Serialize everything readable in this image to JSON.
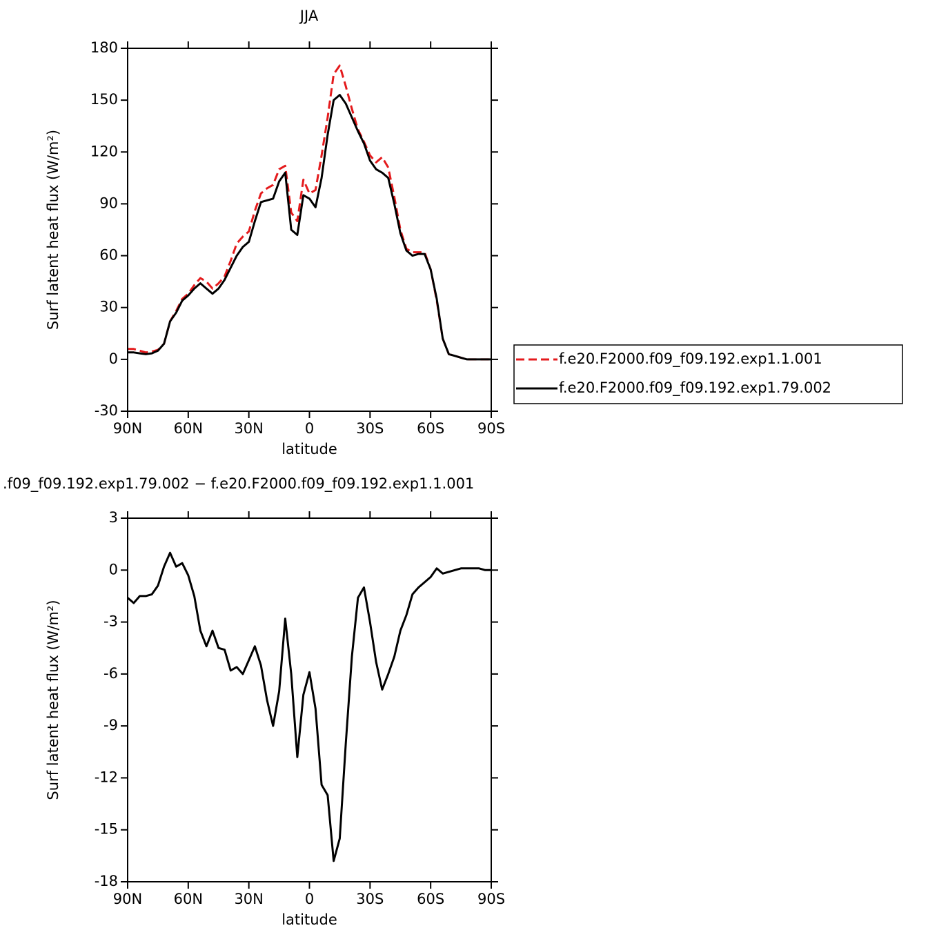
{
  "chart_data": [
    {
      "type": "line",
      "title": "JJA",
      "x_label": "latitude",
      "y_label": "Surf latent heat flux (W/m²)",
      "x": [
        90,
        87,
        84,
        81,
        78,
        75,
        72,
        69,
        66,
        63,
        60,
        57,
        54,
        51,
        48,
        45,
        42,
        39,
        36,
        33,
        30,
        27,
        24,
        21,
        18,
        15,
        12,
        9,
        6,
        3,
        0,
        -3,
        -6,
        -9,
        -12,
        -15,
        -18,
        -21,
        -24,
        -27,
        -30,
        -33,
        -36,
        -39,
        -42,
        -45,
        -48,
        -51,
        -54,
        -57,
        -60,
        -63,
        -66,
        -69,
        -72,
        -75,
        -78,
        -81,
        -84,
        -87,
        -90
      ],
      "series": [
        {
          "name": "f.e20.F2000.f09_f09.192.exp1.1.001",
          "color": "#e41a1c",
          "line_style": "dashed",
          "values": [
            6,
            6,
            5,
            4,
            4.5,
            5.5,
            9,
            22,
            28,
            35,
            38,
            43,
            47,
            45,
            41,
            44,
            48,
            57,
            67,
            71,
            74,
            86,
            96,
            99,
            101,
            110,
            112,
            85,
            80,
            104,
            96,
            98,
            118,
            140,
            165,
            170,
            158,
            145,
            133,
            126,
            118,
            114,
            117,
            111,
            94,
            75,
            64,
            62,
            62,
            62,
            52,
            34,
            12,
            3,
            2,
            1,
            0,
            0,
            0,
            0,
            0
          ]
        },
        {
          "name": "f.e20.F2000.f09_f09.192.exp1.79.002",
          "color": "#000000",
          "line_style": "solid",
          "values": [
            4,
            4,
            3.5,
            3,
            3.5,
            5,
            9,
            22,
            27,
            34,
            37,
            41,
            44,
            41,
            38,
            41,
            46,
            53,
            60,
            65,
            68,
            80,
            91,
            92,
            93,
            103,
            108,
            75,
            72,
            95,
            93,
            88,
            105,
            130,
            150,
            153,
            148,
            140,
            132,
            125,
            115,
            110,
            108,
            105,
            90,
            73,
            63,
            60,
            61,
            61,
            52,
            35,
            12,
            3,
            2,
            1,
            0,
            0,
            0,
            0,
            0
          ]
        }
      ],
      "xlim": [
        90,
        -90
      ],
      "xticks": [
        {
          "value": 90,
          "label": "90N"
        },
        {
          "value": 60,
          "label": "60N"
        },
        {
          "value": 30,
          "label": "30N"
        },
        0,
        {
          "value": -30,
          "label": "30S"
        },
        {
          "value": -60,
          "label": "60S"
        },
        {
          "value": -90,
          "label": "90S"
        }
      ],
      "ylim": [
        -30,
        180
      ],
      "yticks": [
        -30,
        0,
        30,
        60,
        90,
        120,
        150,
        180
      ],
      "legend": "right"
    },
    {
      "type": "line",
      "title": ".f09_f09.192.exp1.79.002 − f.e20.F2000.f09_f09.192.exp1.1.001",
      "x_label": "latitude",
      "y_label": "Surf latent heat flux (W/m²)",
      "x": [
        90,
        87,
        84,
        81,
        78,
        75,
        72,
        69,
        66,
        63,
        60,
        57,
        54,
        51,
        48,
        45,
        42,
        39,
        36,
        33,
        30,
        27,
        24,
        21,
        18,
        15,
        12,
        9,
        6,
        3,
        0,
        -3,
        -6,
        -9,
        -12,
        -15,
        -18,
        -21,
        -24,
        -27,
        -30,
        -33,
        -36,
        -39,
        -42,
        -45,
        -48,
        -51,
        -54,
        -57,
        -60,
        -63,
        -66,
        -69,
        -72,
        -75,
        -78,
        -81,
        -84,
        -87,
        -90
      ],
      "values": [
        -1.6,
        -1.9,
        -1.5,
        -1.5,
        -1.4,
        -0.9,
        0.2,
        1.0,
        0.2,
        0.4,
        -0.3,
        -1.5,
        -3.5,
        -4.4,
        -3.5,
        -4.5,
        -4.6,
        -5.8,
        -5.6,
        -6.0,
        -5.2,
        -4.4,
        -5.5,
        -7.5,
        -9.0,
        -7.0,
        -2.8,
        -6.0,
        -10.8,
        -7.2,
        -5.9,
        -8.0,
        -12.4,
        -13.0,
        -16.8,
        -15.5,
        -10.0,
        -5.0,
        -1.6,
        -1.0,
        -3.0,
        -5.3,
        -6.9,
        -6.0,
        -5.0,
        -3.5,
        -2.6,
        -1.4,
        -1.0,
        -0.7,
        -0.4,
        0.1,
        -0.2,
        -0.1,
        0.0,
        0.1,
        0.1,
        0.1,
        0.1,
        0.0,
        0.0
      ],
      "color": "#000000",
      "line_style": "solid",
      "xlim": [
        90,
        -90
      ],
      "xticks": [
        {
          "value": 90,
          "label": "90N"
        },
        {
          "value": 60,
          "label": "60N"
        },
        {
          "value": 30,
          "label": "30N"
        },
        0,
        {
          "value": -30,
          "label": "30S"
        },
        {
          "value": -60,
          "label": "60S"
        },
        {
          "value": -90,
          "label": "90S"
        }
      ],
      "ylim": [
        -18,
        3
      ],
      "yticks": [
        -18,
        -15,
        -12,
        -9,
        -6,
        -3,
        0,
        3
      ]
    }
  ]
}
